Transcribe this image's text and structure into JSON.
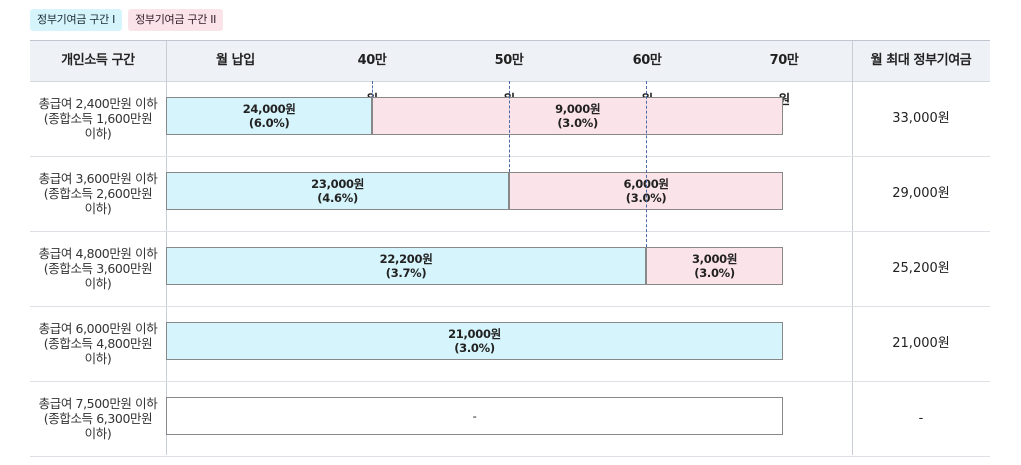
{
  "legend": {
    "tier1": "정부기여금 구간 I",
    "tier2": "정부기여금 구간 II"
  },
  "header": {
    "income": "개인소득 구간",
    "monthly_payment": "월 납입",
    "ticks": [
      "40만원",
      "50만원",
      "60만원",
      "70만원"
    ],
    "max_contribution": "월 최대 정부기여금"
  },
  "chart_data": {
    "type": "bar",
    "orientation": "horizontal",
    "stacked": true,
    "xlabel": "월 납입",
    "x_ticks": [
      40,
      50,
      60,
      70
    ],
    "x_tick_labels": [
      "40만원",
      "50만원",
      "60만원",
      "70만원"
    ],
    "x_range": [
      25,
      70
    ],
    "categories": [
      "총급여 2,400만원 이하 (종합소득 1,600만원 이하)",
      "총급여 3,600만원 이하 (종합소득 2,600만원 이하)",
      "총급여 4,800만원 이하 (종합소득 3,600만원 이하)",
      "총급여 6,000만원 이하 (종합소득 4,800만원 이하)",
      "총급여 7,500만원 이하 (종합소득 6,300만원 이하)"
    ],
    "series": [
      {
        "name": "정부기여금 구간 I",
        "color": "#d6f4fb",
        "breakpoints": [
          40,
          50,
          60,
          70,
          null
        ]
      },
      {
        "name": "정부기여금 구간 II",
        "color": "#fbe3ea",
        "breakpoints": [
          70,
          70,
          70,
          null,
          null
        ]
      }
    ]
  },
  "rows": [
    {
      "label1": "총급여 2,400만원 이하",
      "label2": "(종합소득 1,600만원",
      "label3": "이하)",
      "segments": [
        {
          "tier": 1,
          "from": 25,
          "to": 40,
          "amount": "24,000원",
          "rate": "(6.0%)"
        },
        {
          "tier": 2,
          "from": 40,
          "to": 70,
          "amount": "9,000원",
          "rate": "(3.0%)"
        }
      ],
      "max": "33,000원"
    },
    {
      "label1": "총급여 3,600만원 이하",
      "label2": "(종합소득 2,600만원",
      "label3": "이하)",
      "segments": [
        {
          "tier": 1,
          "from": 25,
          "to": 50,
          "amount": "23,000원",
          "rate": "(4.6%)"
        },
        {
          "tier": 2,
          "from": 50,
          "to": 70,
          "amount": "6,000원",
          "rate": "(3.0%)"
        }
      ],
      "max": "29,000원"
    },
    {
      "label1": "총급여 4,800만원 이하",
      "label2": "(종합소득 3,600만원",
      "label3": "이하)",
      "segments": [
        {
          "tier": 1,
          "from": 25,
          "to": 60,
          "amount": "22,200원",
          "rate": "(3.7%)"
        },
        {
          "tier": 2,
          "from": 60,
          "to": 70,
          "amount": "3,000원",
          "rate": "(3.0%)"
        }
      ],
      "max": "25,200원"
    },
    {
      "label1": "총급여 6,000만원 이하",
      "label2": "(종합소득 4,800만원",
      "label3": "이하)",
      "segments": [
        {
          "tier": 1,
          "from": 25,
          "to": 70,
          "amount": "21,000원",
          "rate": "(3.0%)"
        }
      ],
      "max": "21,000원"
    },
    {
      "label1": "총급여 7,500만원 이하",
      "label2": "(종합소득 6,300만원",
      "label3": "이하)",
      "segments": [
        {
          "tier": 0,
          "from": 25,
          "to": 70,
          "amount": "-",
          "rate": ""
        }
      ],
      "max": "-"
    }
  ]
}
